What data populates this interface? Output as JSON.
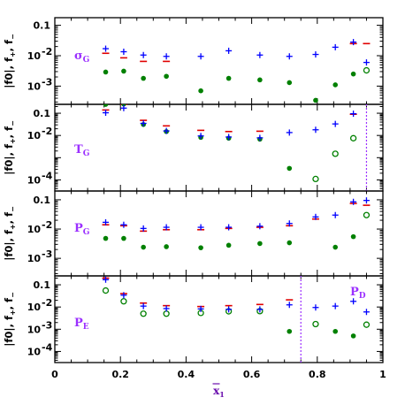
{
  "chart_data": {
    "type": "scatter",
    "x_axis": {
      "label": "x̄₁",
      "label_main": "x",
      "label_sub": "1",
      "range": [
        0,
        1
      ],
      "ticks": [
        0,
        0.2,
        0.4,
        0.6,
        0.8,
        1
      ],
      "tick_labels": [
        "0",
        "0.2",
        "0.4",
        "0.6",
        "0.8",
        "1"
      ]
    },
    "colors": {
      "f_plus": "#0000ff",
      "f_minus": "#e00000",
      "f0": "#008000",
      "label": "#9b30ff",
      "cutline": "#9b30ff"
    },
    "panels": [
      {
        "id": "sigma",
        "label_main": "σ",
        "label_sub": "G",
        "ylabel": "|f0|, f+, f−",
        "ylabel_parts": [
          "|f0|, f",
          "+",
          ", f",
          "−"
        ],
        "ylim_log10": [
          -3.6,
          -0.75
        ],
        "yticks": [
          {
            "value": 0.1,
            "label": "0.1"
          },
          {
            "value": 0.01,
            "label": "10",
            "exp": "-2"
          },
          {
            "value": 0.001,
            "label": "10",
            "exp": "-3"
          }
        ],
        "cutline": null,
        "f_plus": [
          [
            0.155,
            0.017
          ],
          [
            0.21,
            0.0135
          ],
          [
            0.27,
            0.0105
          ],
          [
            0.34,
            0.0095
          ],
          [
            0.445,
            0.0095
          ],
          [
            0.53,
            0.0145
          ],
          [
            0.625,
            0.0105
          ],
          [
            0.715,
            0.0095
          ],
          [
            0.795,
            0.011
          ],
          [
            0.855,
            0.019
          ],
          [
            0.91,
            0.028
          ],
          [
            0.95,
            0.006
          ]
        ],
        "f_minus": [
          [
            0.155,
            0.012
          ],
          [
            0.21,
            0.0085
          ],
          [
            0.27,
            0.0065
          ],
          [
            0.34,
            0.0065
          ],
          [
            0.91,
            0.025
          ],
          [
            0.95,
            0.025
          ]
        ],
        "f0_filled": [
          [
            0.155,
            0.0029
          ],
          [
            0.21,
            0.0031
          ],
          [
            0.27,
            0.0018
          ],
          [
            0.34,
            0.0021
          ],
          [
            0.445,
            0.0007
          ],
          [
            0.53,
            0.0018
          ],
          [
            0.625,
            0.0016
          ],
          [
            0.715,
            0.0013
          ],
          [
            0.795,
            0.00034
          ],
          [
            0.855,
            0.0011
          ],
          [
            0.91,
            0.0025
          ]
        ],
        "f0_open": [
          [
            0.95,
            0.0033
          ]
        ]
      },
      {
        "id": "T",
        "label_main": "T",
        "label_sub": "G",
        "ylabel": "|f0|, f+, f−",
        "ylabel_parts": [
          "|f0|, f",
          "+",
          ", f",
          "−"
        ],
        "ylim_log10": [
          -4.5,
          -0.6
        ],
        "yticks": [
          {
            "value": 0.1,
            "label": "0.1"
          },
          {
            "value": 0.01,
            "label": "10",
            "exp": "-2"
          },
          {
            "value": 0.0001,
            "label": "10",
            "exp": "-4"
          }
        ],
        "cutline": 0.95,
        "f_plus": [
          [
            0.155,
            0.105
          ],
          [
            0.21,
            0.17
          ],
          [
            0.27,
            0.035
          ],
          [
            0.34,
            0.016
          ],
          [
            0.445,
            0.0095
          ],
          [
            0.53,
            0.0085
          ],
          [
            0.625,
            0.0078
          ],
          [
            0.715,
            0.0135
          ],
          [
            0.795,
            0.018
          ],
          [
            0.855,
            0.033
          ],
          [
            0.91,
            0.095
          ]
        ],
        "f_minus": [
          [
            0.155,
            0.14
          ],
          [
            0.21,
            0.25
          ],
          [
            0.27,
            0.048
          ],
          [
            0.34,
            0.027
          ],
          [
            0.445,
            0.017
          ],
          [
            0.53,
            0.015
          ],
          [
            0.625,
            0.0155
          ],
          [
            0.91,
            0.09
          ]
        ],
        "f0_filled": [
          [
            0.155,
            0.25
          ],
          [
            0.21,
            0.26
          ],
          [
            0.27,
            0.031
          ],
          [
            0.34,
            0.015
          ],
          [
            0.445,
            0.0082
          ],
          [
            0.53,
            0.0075
          ],
          [
            0.625,
            0.0068
          ],
          [
            0.715,
            0.00033
          ]
        ],
        "f0_open": [
          [
            0.795,
            0.00011
          ],
          [
            0.855,
            0.0015
          ],
          [
            0.91,
            0.0075
          ]
        ]
      },
      {
        "id": "P",
        "label_main": "P",
        "label_sub": "G",
        "ylabel": "|f0|, f+, f−",
        "ylabel_parts": [
          "|f0|, f",
          "+",
          ", f",
          "−"
        ],
        "ylim_log10": [
          -3.6,
          -0.7
        ],
        "yticks": [
          {
            "value": 0.1,
            "label": "0.1"
          },
          {
            "value": 0.01,
            "label": "10",
            "exp": "-2"
          },
          {
            "value": 0.001,
            "label": "10",
            "exp": "-3"
          }
        ],
        "cutline": null,
        "f_plus": [
          [
            0.155,
            0.017
          ],
          [
            0.21,
            0.014
          ],
          [
            0.27,
            0.0105
          ],
          [
            0.34,
            0.0115
          ],
          [
            0.445,
            0.0115
          ],
          [
            0.53,
            0.0115
          ],
          [
            0.625,
            0.0125
          ],
          [
            0.715,
            0.0155
          ],
          [
            0.795,
            0.026
          ],
          [
            0.855,
            0.03
          ],
          [
            0.91,
            0.085
          ],
          [
            0.95,
            0.095
          ]
        ],
        "f_minus": [
          [
            0.155,
            0.014
          ],
          [
            0.21,
            0.013
          ],
          [
            0.27,
            0.0085
          ],
          [
            0.34,
            0.0095
          ],
          [
            0.445,
            0.0095
          ],
          [
            0.53,
            0.0105
          ],
          [
            0.625,
            0.0115
          ],
          [
            0.715,
            0.013
          ],
          [
            0.795,
            0.022
          ],
          [
            0.91,
            0.075
          ],
          [
            0.95,
            0.065
          ]
        ],
        "f0_filled": [
          [
            0.155,
            0.0048
          ],
          [
            0.21,
            0.0048
          ],
          [
            0.27,
            0.0024
          ],
          [
            0.34,
            0.0025
          ],
          [
            0.445,
            0.0023
          ],
          [
            0.53,
            0.0028
          ],
          [
            0.625,
            0.0032
          ],
          [
            0.715,
            0.0034
          ],
          [
            0.855,
            0.0024
          ],
          [
            0.91,
            0.0055
          ]
        ],
        "f0_open": [
          [
            0.95,
            0.03
          ]
        ]
      },
      {
        "id": "PE",
        "label_main": "P",
        "label_sub": "E",
        "label2_main": "P",
        "label2_sub": "D",
        "ylabel": "|f0|, f+, f−",
        "ylabel_parts": [
          "|f0|, f",
          "+",
          ", f",
          "−"
        ],
        "ylim_log10": [
          -4.5,
          -0.6
        ],
        "yticks": [
          {
            "value": 0.1,
            "label": "0.1"
          },
          {
            "value": 0.01,
            "label": "10",
            "exp": "-2"
          },
          {
            "value": 0.001,
            "label": "10",
            "exp": "-3"
          },
          {
            "value": 0.0001,
            "label": "10",
            "exp": "-4"
          }
        ],
        "cutline": 0.75,
        "f_plus": [
          [
            0.155,
            0.17
          ],
          [
            0.21,
            0.034
          ],
          [
            0.27,
            0.011
          ],
          [
            0.34,
            0.0085
          ],
          [
            0.445,
            0.0082
          ],
          [
            0.53,
            0.0078
          ],
          [
            0.625,
            0.0078
          ],
          [
            0.715,
            0.0125
          ],
          [
            0.795,
            0.0095
          ],
          [
            0.855,
            0.011
          ],
          [
            0.91,
            0.018
          ],
          [
            0.95,
            0.006
          ]
        ],
        "f_minus": [
          [
            0.155,
            0.2
          ],
          [
            0.21,
            0.04
          ],
          [
            0.27,
            0.015
          ],
          [
            0.34,
            0.0115
          ],
          [
            0.445,
            0.0105
          ],
          [
            0.53,
            0.0115
          ],
          [
            0.625,
            0.013
          ],
          [
            0.715,
            0.021
          ]
        ],
        "f0_filled": [
          [
            0.715,
            0.0008
          ],
          [
            0.855,
            0.0008
          ],
          [
            0.91,
            0.0005
          ]
        ],
        "f0_open": [
          [
            0.155,
            0.055
          ],
          [
            0.21,
            0.018
          ],
          [
            0.27,
            0.005
          ],
          [
            0.34,
            0.005
          ],
          [
            0.445,
            0.0054
          ],
          [
            0.53,
            0.0064
          ],
          [
            0.625,
            0.0065
          ],
          [
            0.795,
            0.0017
          ],
          [
            0.95,
            0.0016
          ]
        ]
      }
    ]
  }
}
